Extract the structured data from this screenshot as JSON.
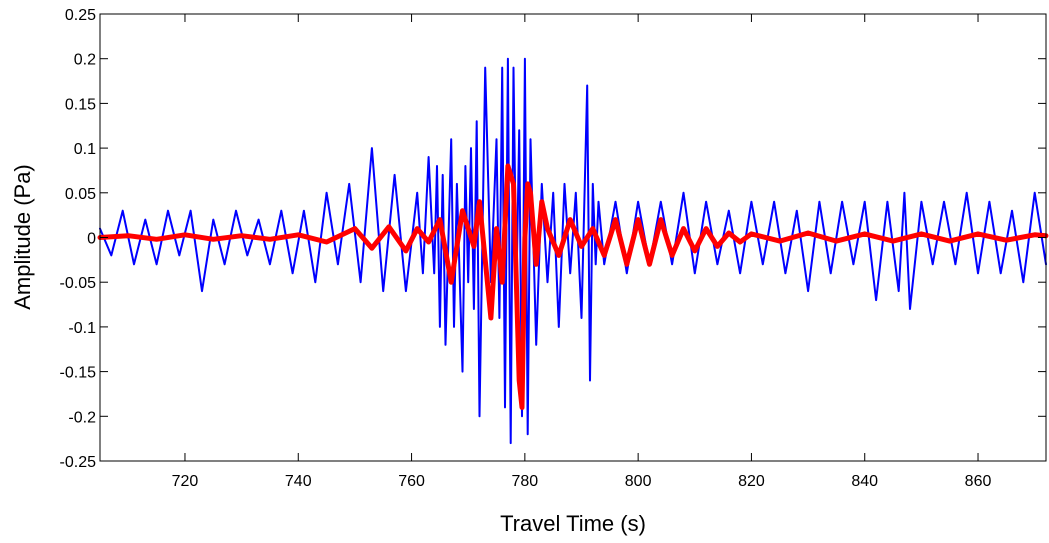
{
  "chart_data": {
    "type": "line",
    "title": "",
    "xlabel": "Travel Time (s)",
    "ylabel": "Amplitude (Pa)",
    "xlim": [
      705,
      872
    ],
    "ylim": [
      -0.25,
      0.25
    ],
    "xticks": [
      720,
      740,
      760,
      780,
      800,
      820,
      840,
      860
    ],
    "yticks": [
      -0.25,
      -0.2,
      -0.15,
      -0.1,
      -0.05,
      0,
      0.05,
      0.1,
      0.15,
      0.2,
      0.25
    ],
    "ytick_labels": [
      "-0.25",
      "-0.2",
      "-0.15",
      "-0.1",
      "-0.05",
      "0",
      "0.05",
      "0.1",
      "0.15",
      "0.2",
      "0.25"
    ],
    "grid": false,
    "legend": "none",
    "series": [
      {
        "color": "#0000ff",
        "line_width": "thin",
        "x": [
          705,
          707,
          709,
          711,
          713,
          715,
          717,
          719,
          721,
          723,
          725,
          727,
          729,
          731,
          733,
          735,
          737,
          739,
          741,
          743,
          745,
          747,
          749,
          751,
          753,
          755,
          757,
          759,
          761,
          762,
          763,
          764,
          764.5,
          765,
          765.5,
          766,
          767,
          767.5,
          768,
          769,
          769.5,
          770,
          770.5,
          771,
          771.5,
          772,
          773,
          774,
          775,
          775.5,
          776,
          776.5,
          777,
          777.5,
          778,
          778.5,
          779,
          779.5,
          780,
          780.5,
          781,
          782,
          783,
          784,
          785,
          786,
          787,
          788,
          789,
          790,
          791,
          791.5,
          792,
          792.5,
          793,
          794,
          796,
          798,
          800,
          802,
          804,
          806,
          808,
          810,
          812,
          814,
          816,
          818,
          820,
          822,
          824,
          826,
          828,
          830,
          832,
          834,
          836,
          838,
          840,
          842,
          844,
          846,
          847,
          848,
          850,
          852,
          854,
          856,
          858,
          860,
          862,
          864,
          866,
          868,
          870,
          872
        ],
        "y": [
          0.01,
          -0.02,
          0.03,
          -0.03,
          0.02,
          -0.03,
          0.03,
          -0.02,
          0.03,
          -0.06,
          0.02,
          -0.03,
          0.03,
          -0.02,
          0.02,
          -0.03,
          0.03,
          -0.04,
          0.03,
          -0.05,
          0.05,
          -0.03,
          0.06,
          -0.05,
          0.1,
          -0.06,
          0.07,
          -0.06,
          0.05,
          -0.04,
          0.09,
          -0.04,
          0.08,
          -0.1,
          0.07,
          -0.12,
          0.11,
          -0.1,
          0.06,
          -0.15,
          0.08,
          -0.05,
          0.1,
          -0.08,
          0.13,
          -0.2,
          0.19,
          -0.05,
          0.11,
          -0.09,
          0.19,
          -0.19,
          0.2,
          -0.23,
          0.19,
          -0.06,
          0.12,
          -0.2,
          0.2,
          -0.22,
          0.11,
          -0.12,
          0.06,
          -0.05,
          0.05,
          -0.1,
          0.06,
          -0.04,
          0.05,
          -0.09,
          0.17,
          -0.16,
          0.06,
          -0.03,
          0.04,
          -0.03,
          0.04,
          -0.04,
          0.04,
          -0.03,
          0.04,
          -0.03,
          0.05,
          -0.04,
          0.04,
          -0.03,
          0.03,
          -0.04,
          0.04,
          -0.03,
          0.04,
          -0.04,
          0.03,
          -0.06,
          0.04,
          -0.04,
          0.04,
          -0.03,
          0.04,
          -0.07,
          0.04,
          -0.06,
          0.05,
          -0.08,
          0.04,
          -0.03,
          0.04,
          -0.03,
          0.05,
          -0.04,
          0.04,
          -0.04,
          0.03,
          -0.05,
          0.05,
          -0.03
        ]
      },
      {
        "color": "#ff0000",
        "line_width": "thick",
        "x": [
          705,
          710,
          715,
          720,
          725,
          730,
          735,
          740,
          745,
          750,
          753,
          756,
          759,
          761,
          763,
          765,
          767,
          769,
          771,
          772,
          774,
          775,
          776,
          777,
          778,
          779,
          779.5,
          780,
          780.5,
          781,
          782,
          783,
          784,
          786,
          788,
          790,
          792,
          794,
          796,
          798,
          800,
          802,
          804,
          806,
          808,
          810,
          812,
          814,
          816,
          818,
          820,
          825,
          830,
          835,
          840,
          845,
          850,
          855,
          860,
          865,
          870,
          872
        ],
        "y": [
          0,
          0.002,
          -0.002,
          0.003,
          -0.002,
          0.002,
          -0.002,
          0.003,
          -0.005,
          0.01,
          -0.012,
          0.012,
          -0.015,
          0.01,
          -0.005,
          0.02,
          -0.05,
          0.03,
          -0.01,
          0.04,
          -0.09,
          0.01,
          -0.05,
          0.08,
          0.06,
          -0.16,
          -0.19,
          0.0,
          0.06,
          0.05,
          -0.03,
          0.04,
          0.01,
          -0.02,
          0.02,
          -0.01,
          0.01,
          -0.02,
          0.02,
          -0.03,
          0.02,
          -0.03,
          0.02,
          -0.02,
          0.01,
          -0.015,
          0.01,
          -0.01,
          0.005,
          -0.005,
          0.004,
          -0.004,
          0.005,
          -0.004,
          0.004,
          -0.004,
          0.004,
          -0.004,
          0.004,
          -0.003,
          0.003,
          0.002
        ]
      }
    ]
  }
}
